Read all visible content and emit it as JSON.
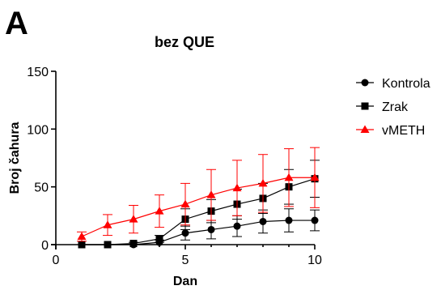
{
  "panel_letter": "A",
  "chart_data": {
    "type": "line",
    "title": "bez QUE",
    "xlabel": "Dan",
    "ylabel": "Broj čahura",
    "xlim": [
      0,
      10
    ],
    "ylim": [
      0,
      150
    ],
    "xticks": [
      0,
      5,
      10
    ],
    "yticks": [
      0,
      50,
      100,
      150
    ],
    "grid": false,
    "legend_position": "right",
    "series": [
      {
        "name": "Kontrola",
        "marker": "circle",
        "color": "#000000",
        "x": [
          1,
          2,
          3,
          4,
          5,
          6,
          7,
          8,
          9,
          10
        ],
        "y": [
          0,
          0,
          0,
          2,
          10,
          13,
          16,
          20,
          21,
          21
        ],
        "error": [
          0,
          0,
          0,
          2,
          6,
          8,
          9,
          10,
          10,
          9
        ]
      },
      {
        "name": "Zrak",
        "marker": "square",
        "color": "#000000",
        "x": [
          1,
          2,
          3,
          4,
          5,
          6,
          7,
          8,
          9,
          10
        ],
        "y": [
          0,
          0,
          1,
          5,
          22,
          29,
          35,
          40,
          50,
          57
        ],
        "error": [
          0,
          0,
          1,
          3,
          9,
          10,
          13,
          13,
          15,
          16
        ]
      },
      {
        "name": "vMETH",
        "marker": "triangle",
        "color": "#ff0000",
        "x": [
          1,
          2,
          3,
          4,
          5,
          6,
          7,
          8,
          9,
          10
        ],
        "y": [
          7,
          17,
          22,
          29,
          35,
          43,
          49,
          53,
          58,
          58
        ],
        "error": [
          4,
          9,
          12,
          14,
          18,
          22,
          24,
          25,
          25,
          26
        ]
      }
    ]
  }
}
